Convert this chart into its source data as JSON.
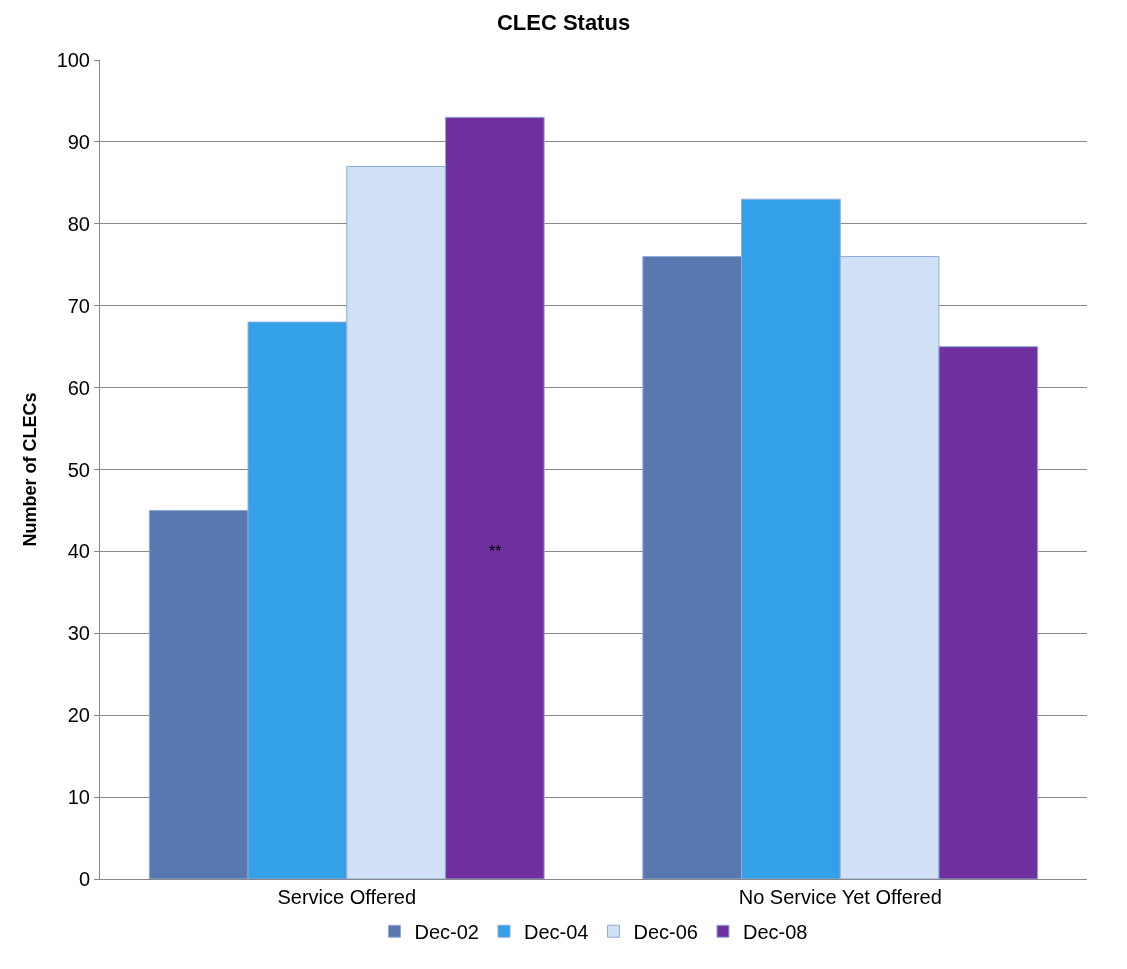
{
  "chart_data": {
    "type": "bar",
    "title": "CLEC Status",
    "ylabel": "Number of CLECs",
    "categories": [
      "Service Offered",
      "No Service Yet Offered"
    ],
    "series": [
      {
        "name": "Dec-02",
        "color": "#5a78b0",
        "values": [
          45,
          76
        ]
      },
      {
        "name": "Dec-04",
        "color": "#33a0e8",
        "values": [
          68,
          83
        ]
      },
      {
        "name": "Dec-06",
        "color": "#d0e0f5",
        "values": [
          87,
          76
        ]
      },
      {
        "name": "Dec-08",
        "color": "#7030a0",
        "values": [
          93,
          65
        ]
      }
    ],
    "ylim": [
      0,
      100
    ],
    "yticks": [
      0,
      10,
      20,
      30,
      40,
      50,
      60,
      70,
      80,
      90,
      100
    ],
    "grid": "y",
    "legend": "bottom",
    "annotations": [
      "**"
    ]
  }
}
